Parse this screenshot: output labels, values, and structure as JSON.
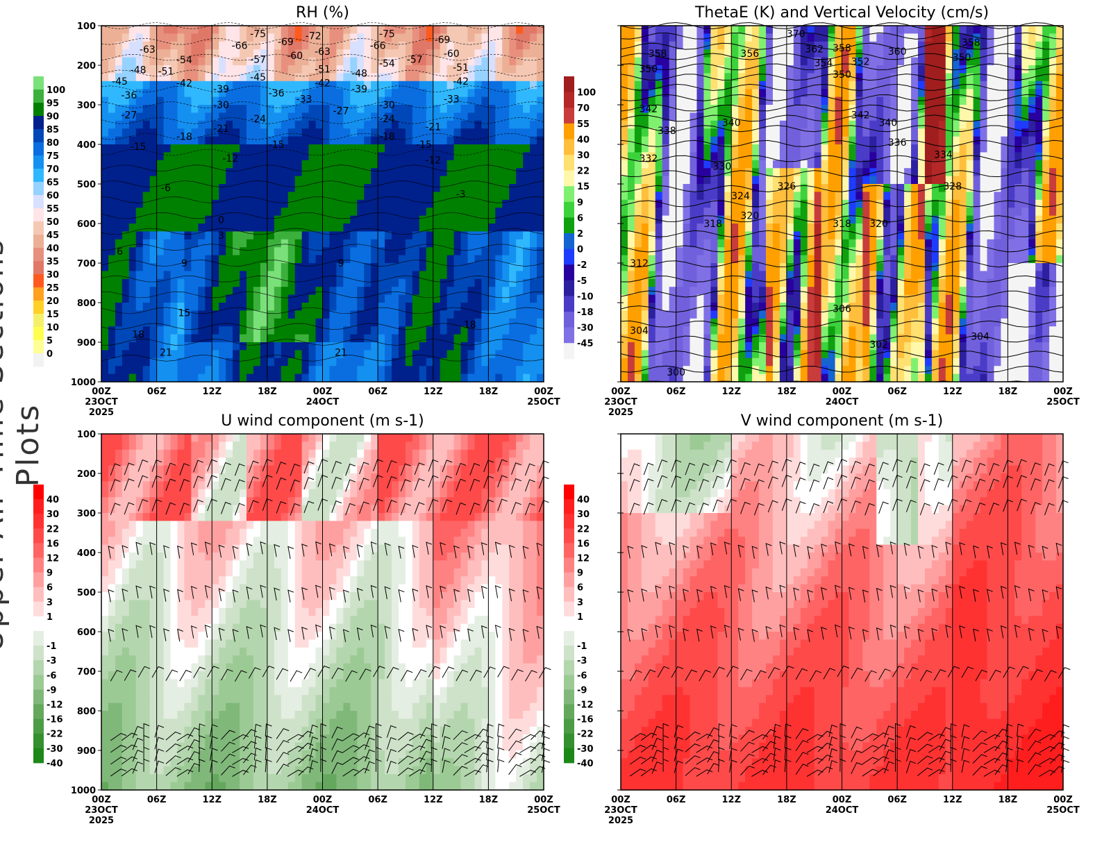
{
  "side_title": "Upper-Air Time Sections Plots",
  "time_ticks": [
    {
      "h": 0,
      "l1": "00Z",
      "l2": "23OCT",
      "l3": "2025"
    },
    {
      "h": 6,
      "l1": "06Z"
    },
    {
      "h": 12,
      "l1": "12Z"
    },
    {
      "h": 18,
      "l1": "18Z"
    },
    {
      "h": 24,
      "l1": "00Z",
      "l2": "24OCT"
    },
    {
      "h": 30,
      "l1": "06Z"
    },
    {
      "h": 36,
      "l1": "12Z"
    },
    {
      "h": 42,
      "l1": "18Z"
    },
    {
      "h": 48,
      "l1": "00Z",
      "l2": "25OCT"
    }
  ],
  "pressure_ticks": [
    100,
    200,
    300,
    400,
    500,
    600,
    700,
    800,
    900,
    1000
  ],
  "chart_data": [
    {
      "type": "heatmap",
      "title": "RH (%)",
      "ylim": [
        1000,
        100
      ],
      "xlim": [
        0,
        48
      ],
      "colorbar": {
        "labels": [
          "100",
          "95",
          "90",
          "85",
          "80",
          "75",
          "70",
          "65",
          "60",
          "55",
          "50",
          "45",
          "40",
          "35",
          "30",
          "25",
          "20",
          "15",
          "10",
          "5",
          "0"
        ],
        "colors": [
          "#7ae07a",
          "#3cb03c",
          "#008000",
          "#00208c",
          "#0048b8",
          "#0a6ee0",
          "#1490f0",
          "#30b8ff",
          "#96d2ff",
          "#d8e0ff",
          "#ffe4e8",
          "#f5c8b4",
          "#ecb096",
          "#e8907e",
          "#e07868",
          "#ff5a1e",
          "#ffa01e",
          "#ffd028",
          "#f5f06a",
          "#ffff50",
          "#ffff96",
          "#f2f2f2"
        ]
      },
      "contour_labels": [
        {
          "t": 5,
          "p": 160,
          "v": "-63"
        },
        {
          "t": 17,
          "p": 120,
          "v": "-75"
        },
        {
          "t": 15,
          "p": 150,
          "v": "-66"
        },
        {
          "t": 20,
          "p": 140,
          "v": "-69"
        },
        {
          "t": 23,
          "p": 125,
          "v": "-72"
        },
        {
          "t": 21,
          "p": 175,
          "v": "-60"
        },
        {
          "t": 24,
          "p": 165,
          "v": "-63"
        },
        {
          "t": 31,
          "p": 120,
          "v": "-75"
        },
        {
          "t": 30,
          "p": 150,
          "v": "-66"
        },
        {
          "t": 37,
          "p": 135,
          "v": "-69"
        },
        {
          "t": 38,
          "p": 170,
          "v": "-60"
        },
        {
          "t": 2,
          "p": 240,
          "v": "-45"
        },
        {
          "t": 4,
          "p": 225,
          "v": "-48"
        },
        {
          "t": 7,
          "p": 215,
          "v": "-51"
        },
        {
          "t": 9,
          "p": 200,
          "v": "-54"
        },
        {
          "t": 17,
          "p": 185,
          "v": "-57"
        },
        {
          "t": 17,
          "p": 230,
          "v": "-45"
        },
        {
          "t": 24,
          "p": 210,
          "v": "-51"
        },
        {
          "t": 24,
          "p": 245,
          "v": "-42"
        },
        {
          "t": 28,
          "p": 220,
          "v": "-48"
        },
        {
          "t": 31,
          "p": 195,
          "v": "-54"
        },
        {
          "t": 34,
          "p": 185,
          "v": "-57"
        },
        {
          "t": 39,
          "p": 205,
          "v": "-51"
        },
        {
          "t": 39,
          "p": 240,
          "v": "-42"
        },
        {
          "t": 3,
          "p": 275,
          "v": "-36"
        },
        {
          "t": 9,
          "p": 245,
          "v": "-42"
        },
        {
          "t": 13,
          "p": 260,
          "v": "-39"
        },
        {
          "t": 19,
          "p": 270,
          "v": "-36"
        },
        {
          "t": 22,
          "p": 285,
          "v": "-33"
        },
        {
          "t": 28,
          "p": 260,
          "v": "-39"
        },
        {
          "t": 38,
          "p": 285,
          "v": "-33"
        },
        {
          "t": 3,
          "p": 325,
          "v": "-27"
        },
        {
          "t": 13,
          "p": 300,
          "v": "-30"
        },
        {
          "t": 31,
          "p": 300,
          "v": "-30"
        },
        {
          "t": 26,
          "p": 315,
          "v": "-27"
        },
        {
          "t": 17,
          "p": 335,
          "v": "-24"
        },
        {
          "t": 31,
          "p": 335,
          "v": "-24"
        },
        {
          "t": 13,
          "p": 360,
          "v": "-21"
        },
        {
          "t": 36,
          "p": 355,
          "v": "-21"
        },
        {
          "t": 9,
          "p": 380,
          "v": "-18"
        },
        {
          "t": 31,
          "p": 380,
          "v": "-18"
        },
        {
          "t": 4,
          "p": 405,
          "v": "-15"
        },
        {
          "t": 19,
          "p": 400,
          "v": "-15"
        },
        {
          "t": 35,
          "p": 400,
          "v": "-15"
        },
        {
          "t": 14,
          "p": 435,
          "v": "-12"
        },
        {
          "t": 36,
          "p": 425,
          "v": "-12"
        },
        {
          "t": 7,
          "p": 510,
          "v": "-6"
        },
        {
          "t": 39,
          "p": 525,
          "v": "-3"
        },
        {
          "t": 13,
          "p": 590,
          "v": "0"
        },
        {
          "t": 13,
          "p": 630,
          "v": "3"
        },
        {
          "t": 2,
          "p": 670,
          "v": "6"
        },
        {
          "t": 9,
          "p": 700,
          "v": "9"
        },
        {
          "t": 26,
          "p": 700,
          "v": "9"
        },
        {
          "t": 9,
          "p": 825,
          "v": "15"
        },
        {
          "t": 40,
          "p": 855,
          "v": "18"
        },
        {
          "t": 4,
          "p": 880,
          "v": "18"
        },
        {
          "t": 7,
          "p": 925,
          "v": "21"
        },
        {
          "t": 26,
          "p": 925,
          "v": "21"
        }
      ]
    },
    {
      "type": "heatmap",
      "title": "ThetaE (K) and Vertical Velocity (cm/s)",
      "ylim": [
        1000,
        100
      ],
      "xlim": [
        0,
        48
      ],
      "colorbar": {
        "labels": [
          "100",
          "70",
          "55",
          "40",
          "30",
          "22",
          "15",
          "9",
          "6",
          "2",
          "0",
          "-2",
          "-5",
          "-10",
          "-18",
          "-30",
          "-45"
        ],
        "colors": [
          "#a01e1e",
          "#b42828",
          "#c83c3c",
          "#ffa000",
          "#ffbe3c",
          "#ffe070",
          "#fff8aa",
          "#80f070",
          "#3cd23c",
          "#0fa00f",
          "#1464d2",
          "#1e3cff",
          "#2800a0",
          "#2d20a0",
          "#4b3cc8",
          "#7060dc",
          "#8070e6",
          "#f4f4f4"
        ]
      },
      "contour_labels": [
        {
          "t": 19,
          "p": 120,
          "v": "370"
        },
        {
          "t": 21,
          "p": 145,
          "v": "362"
        },
        {
          "t": 4,
          "p": 170,
          "v": "358"
        },
        {
          "t": 14,
          "p": 170,
          "v": "356"
        },
        {
          "t": 22,
          "p": 180,
          "v": "354"
        },
        {
          "t": 24,
          "p": 170,
          "v": "358"
        },
        {
          "t": 24,
          "p": 195,
          "v": "350"
        },
        {
          "t": 26,
          "p": 190,
          "v": "352"
        },
        {
          "t": 30,
          "p": 165,
          "v": "360"
        },
        {
          "t": 37,
          "p": 180,
          "v": "350"
        },
        {
          "t": 38,
          "p": 170,
          "v": "358"
        },
        {
          "t": 3,
          "p": 195,
          "v": "350"
        },
        {
          "t": 3,
          "p": 310,
          "v": "342"
        },
        {
          "t": 26,
          "p": 325,
          "v": "342"
        },
        {
          "t": 12,
          "p": 345,
          "v": "340"
        },
        {
          "t": 29,
          "p": 345,
          "v": "340"
        },
        {
          "t": 5,
          "p": 365,
          "v": "338"
        },
        {
          "t": 30,
          "p": 395,
          "v": "336"
        },
        {
          "t": 35,
          "p": 425,
          "v": "334"
        },
        {
          "t": 3,
          "p": 435,
          "v": "332"
        },
        {
          "t": 11,
          "p": 455,
          "v": "330"
        },
        {
          "t": 18,
          "p": 505,
          "v": "326"
        },
        {
          "t": 36,
          "p": 505,
          "v": "328"
        },
        {
          "t": 13,
          "p": 530,
          "v": "324"
        },
        {
          "t": 14,
          "p": 580,
          "v": "320"
        },
        {
          "t": 28,
          "p": 600,
          "v": "320"
        },
        {
          "t": 10,
          "p": 600,
          "v": "318"
        },
        {
          "t": 24,
          "p": 600,
          "v": "318"
        },
        {
          "t": 2,
          "p": 700,
          "v": "312"
        },
        {
          "t": 24,
          "p": 815,
          "v": "306"
        },
        {
          "t": 2,
          "p": 870,
          "v": "304"
        },
        {
          "t": 39,
          "p": 885,
          "v": "304"
        },
        {
          "t": 28,
          "p": 905,
          "v": "302"
        },
        {
          "t": 6,
          "p": 975,
          "v": "300"
        }
      ]
    },
    {
      "type": "heatmap",
      "title": "U wind component (m s-1)",
      "ylim": [
        1000,
        100
      ],
      "xlim": [
        0,
        48
      ],
      "colorbar": {
        "labels": [
          "40",
          "30",
          "22",
          "16",
          "12",
          "9",
          "6",
          "3",
          "1",
          "",
          "-1",
          "-3",
          "-6",
          "-9",
          "-12",
          "-16",
          "-22",
          "-30",
          "-40"
        ],
        "colors": [
          "#ff0000",
          "#ff1e1e",
          "#ff3232",
          "#ff4a4a",
          "#ff6464",
          "#ff8282",
          "#ffa0a0",
          "#ffbebe",
          "#ffdcdc",
          "#ffffff",
          "#e4eee2",
          "#cde2c8",
          "#b4d6ae",
          "#9cca94",
          "#80b87a",
          "#64a85e",
          "#4c9c46",
          "#34902e",
          "#1c8818"
        ]
      }
    },
    {
      "type": "heatmap",
      "title": "V wind component (m s-1)",
      "ylim": [
        1000,
        100
      ],
      "xlim": [
        0,
        48
      ],
      "colorbar": {
        "labels": [
          "40",
          "30",
          "22",
          "16",
          "12",
          "9",
          "6",
          "3",
          "1",
          "",
          "-1",
          "-3",
          "-6",
          "-9",
          "-12",
          "-16",
          "-22",
          "-30",
          "-40"
        ],
        "colors": [
          "#ff0000",
          "#ff1e1e",
          "#ff3232",
          "#ff4a4a",
          "#ff6464",
          "#ff8282",
          "#ffa0a0",
          "#ffbebe",
          "#ffdcdc",
          "#ffffff",
          "#e4eee2",
          "#cde2c8",
          "#b4d6ae",
          "#9cca94",
          "#80b87a",
          "#64a85e",
          "#4c9c46",
          "#34902e",
          "#1c8818"
        ]
      }
    }
  ]
}
